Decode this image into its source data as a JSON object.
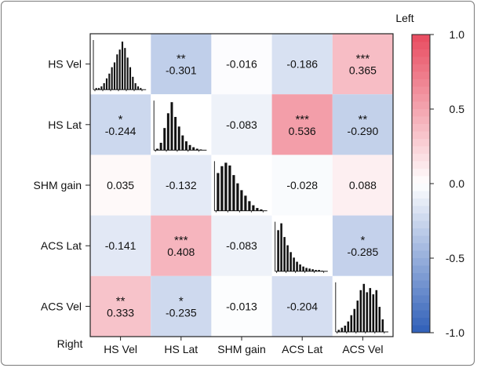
{
  "chart_data": {
    "type": "heatmap",
    "variables": [
      "HS Vel",
      "HS Lat",
      "SHM gain",
      "ACS Lat",
      "ACS Vel"
    ],
    "corner_labels": {
      "top_right": "Left",
      "bottom_left": "Right"
    },
    "cells": [
      {
        "row": "HS Vel",
        "col": "HS Lat",
        "value": -0.301,
        "stars": "**"
      },
      {
        "row": "HS Vel",
        "col": "SHM gain",
        "value": -0.016,
        "stars": ""
      },
      {
        "row": "HS Vel",
        "col": "ACS Lat",
        "value": -0.186,
        "stars": ""
      },
      {
        "row": "HS Vel",
        "col": "ACS Vel",
        "value": 0.365,
        "stars": "***"
      },
      {
        "row": "HS Lat",
        "col": "HS Vel",
        "value": -0.244,
        "stars": "*"
      },
      {
        "row": "HS Lat",
        "col": "SHM gain",
        "value": -0.083,
        "stars": ""
      },
      {
        "row": "HS Lat",
        "col": "ACS Lat",
        "value": 0.536,
        "stars": "***"
      },
      {
        "row": "HS Lat",
        "col": "ACS Vel",
        "value": -0.29,
        "stars": "**"
      },
      {
        "row": "SHM gain",
        "col": "HS Vel",
        "value": 0.035,
        "stars": ""
      },
      {
        "row": "SHM gain",
        "col": "HS Lat",
        "value": -0.132,
        "stars": ""
      },
      {
        "row": "SHM gain",
        "col": "ACS Lat",
        "value": -0.028,
        "stars": ""
      },
      {
        "row": "SHM gain",
        "col": "ACS Vel",
        "value": 0.088,
        "stars": ""
      },
      {
        "row": "ACS Lat",
        "col": "HS Vel",
        "value": -0.141,
        "stars": ""
      },
      {
        "row": "ACS Lat",
        "col": "HS Lat",
        "value": 0.408,
        "stars": "***"
      },
      {
        "row": "ACS Lat",
        "col": "SHM gain",
        "value": -0.083,
        "stars": ""
      },
      {
        "row": "ACS Lat",
        "col": "ACS Vel",
        "value": -0.285,
        "stars": "*"
      },
      {
        "row": "ACS Vel",
        "col": "HS Vel",
        "value": 0.333,
        "stars": "**"
      },
      {
        "row": "ACS Vel",
        "col": "HS Lat",
        "value": -0.235,
        "stars": "*"
      },
      {
        "row": "ACS Vel",
        "col": "SHM gain",
        "value": -0.013,
        "stars": ""
      },
      {
        "row": "ACS Vel",
        "col": "ACS Lat",
        "value": -0.204,
        "stars": ""
      }
    ],
    "histograms": [
      {
        "variable": "HS Vel",
        "counts": [
          1,
          1,
          2,
          4,
          7,
          10,
          14,
          17,
          22,
          25,
          30,
          26,
          20,
          14,
          8,
          4,
          2,
          1
        ]
      },
      {
        "variable": "HS Lat",
        "counts": [
          2,
          10,
          30,
          50,
          65,
          45,
          32,
          20,
          12,
          7,
          4,
          2,
          1
        ]
      },
      {
        "variable": "SHM gain",
        "counts": [
          55,
          65,
          70,
          66,
          52,
          40,
          30,
          22,
          14,
          8,
          4,
          2
        ]
      },
      {
        "variable": "ACS Lat",
        "counts": [
          60,
          70,
          50,
          38,
          28,
          20,
          14,
          10,
          7,
          5,
          4,
          3,
          2,
          2,
          1
        ]
      },
      {
        "variable": "ACS Vel",
        "counts": [
          2,
          4,
          6,
          10,
          16,
          22,
          30,
          40,
          46,
          38,
          42,
          36,
          40,
          24,
          12
        ]
      }
    ],
    "colorbar": {
      "range": [
        -1.0,
        1.0
      ],
      "ticks": [
        "1.0",
        "0.5",
        "0.0",
        "-0.5",
        "-1.0"
      ],
      "negative_color": "#2f5fb8",
      "positive_color": "#e84a5f",
      "neutral_color": "#ffffff"
    },
    "grid": false
  }
}
